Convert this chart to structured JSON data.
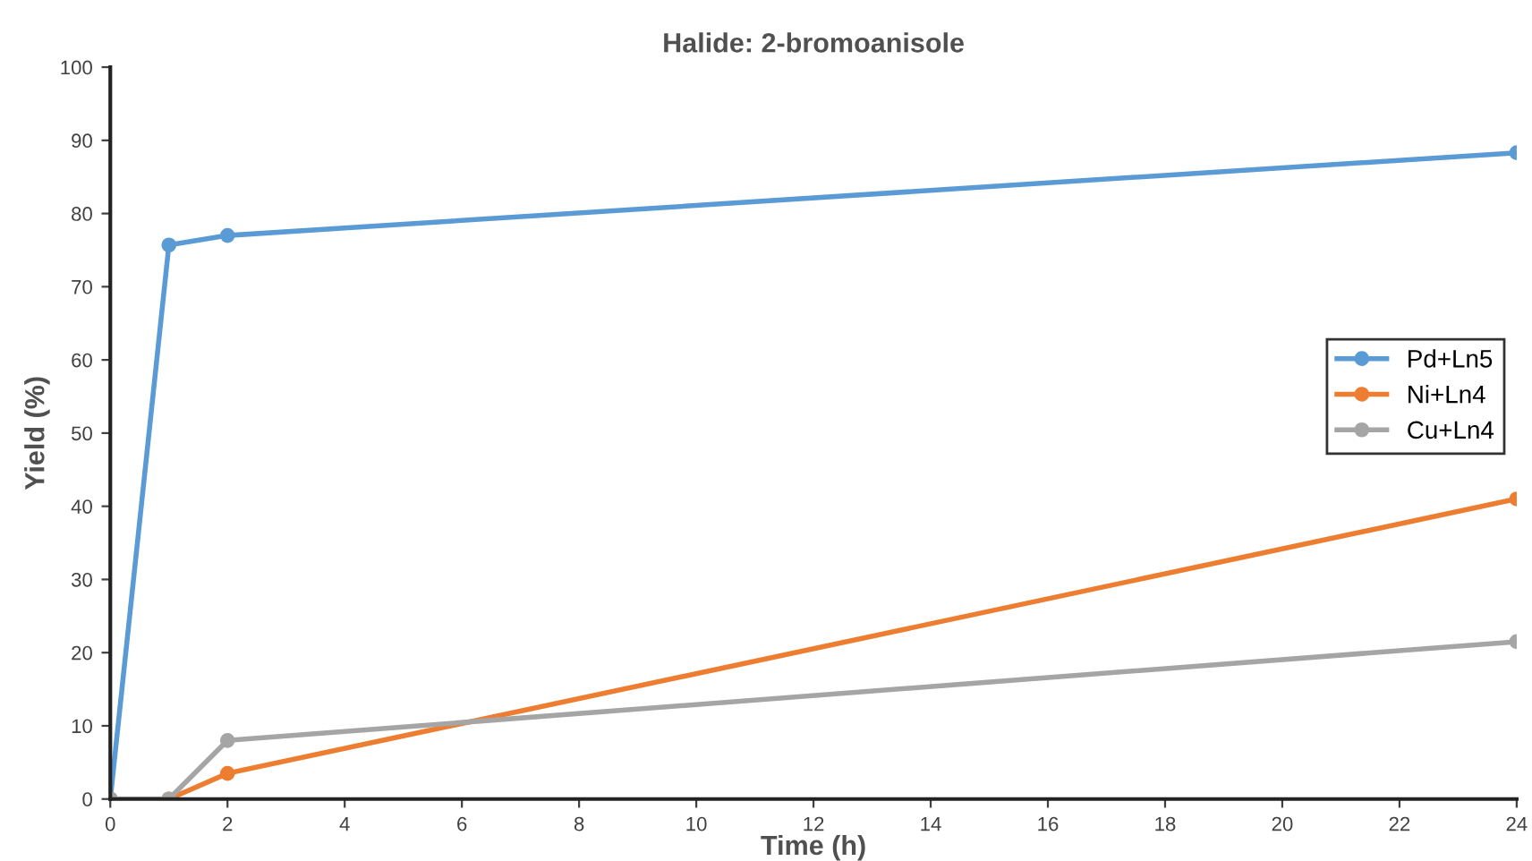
{
  "chart_data": {
    "type": "line",
    "title": "Halide: 2-bromoanisole",
    "xlabel": "Time (h)",
    "ylabel": "Yield (%)",
    "x": [
      0,
      1,
      2,
      24
    ],
    "series": [
      {
        "name": "Pd+Ln5",
        "color": "#5b9bd5",
        "values": [
          0,
          75.7,
          77,
          88.3
        ]
      },
      {
        "name": "Ni+Ln4",
        "color": "#ed7d31",
        "values": [
          0,
          0,
          3.5,
          41
        ]
      },
      {
        "name": "Cu+Ln4",
        "color": "#a5a5a5",
        "values": [
          0,
          0,
          8,
          21.5
        ]
      }
    ],
    "xlim": [
      0,
      24
    ],
    "xticks": [
      0,
      2,
      4,
      6,
      8,
      10,
      12,
      14,
      16,
      18,
      20,
      22,
      24
    ],
    "ylim": [
      0,
      100
    ],
    "yticks": [
      0,
      10,
      20,
      30,
      40,
      50,
      60,
      70,
      80,
      90,
      100
    ],
    "grid": false,
    "legend": "right",
    "marker": "circle",
    "line_style": "solid"
  }
}
